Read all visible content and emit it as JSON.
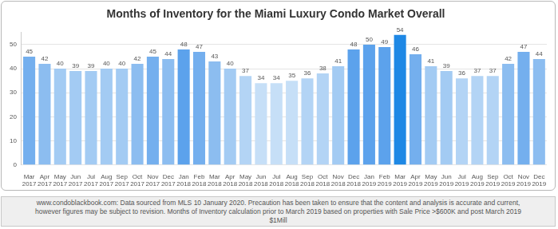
{
  "chart_data": {
    "type": "bar",
    "title": "Months of Inventory for the Miami Luxury Condo Market Overall",
    "footnote": "www.condoblackbook.com:  Data sourced from MLS 10 January 2020. Precaution has been taken to ensure that the content and analysis is accurate and current, however figures may be subject to revision.  Months of Inventory calculation prior to March 2019 based on properties with Sale Price >$600K and post March 2019 $1Mill",
    "categories": [
      "Mar 2017",
      "Apr 2017",
      "May 2017",
      "Jun 2017",
      "Jul 2017",
      "Aug 2017",
      "Sep 2017",
      "Oct 2017",
      "Nov 2017",
      "Dec 2017",
      "Jan 2018",
      "Feb 2018",
      "Mar 2018",
      "Apr 2018",
      "May 2018",
      "Jun 2018",
      "Jul 2018",
      "Aug 2018",
      "Sep 2018",
      "Oct 2018",
      "Nov 2018",
      "Dec 2018",
      "Jan 2019",
      "Feb 2019",
      "Mar 2019",
      "Apr 2019",
      "May 2019",
      "Jun 2019",
      "Jul 2019",
      "Aug 2019",
      "Sep 2019",
      "Oct 2019",
      "Nov 2019",
      "Dec 2019"
    ],
    "values": [
      45,
      42,
      40,
      39,
      39,
      40,
      40,
      42,
      45,
      44,
      48,
      47,
      43,
      40,
      37,
      34,
      34,
      35,
      36,
      38,
      41,
      48,
      50,
      49,
      54,
      46,
      41,
      39,
      36,
      37,
      37,
      42,
      47,
      44
    ],
    "colors": [
      "#74afee",
      "#8cbdf0",
      "#a3cbf3",
      "#a3cbf3",
      "#a3cbf3",
      "#a3cbf3",
      "#a3cbf3",
      "#8cbdf0",
      "#74afee",
      "#8cbdf0",
      "#5ca2ec",
      "#74afee",
      "#8cbdf0",
      "#a3cbf3",
      "#b3d4f5",
      "#c6dff7",
      "#c6dff7",
      "#c6dff7",
      "#b3d4f5",
      "#b3d4f5",
      "#a3cbf3",
      "#5ca2ec",
      "#5ca2ec",
      "#5ca2ec",
      "#1e88e5",
      "#74afee",
      "#a3cbf3",
      "#a3cbf3",
      "#b3d4f5",
      "#b3d4f5",
      "#b3d4f5",
      "#8cbdf0",
      "#74afee",
      "#8cbdf0"
    ],
    "ylim": [
      0,
      55
    ],
    "yticks": [
      0,
      10,
      20,
      30,
      40,
      50
    ],
    "grid": true,
    "data_labels": true
  }
}
